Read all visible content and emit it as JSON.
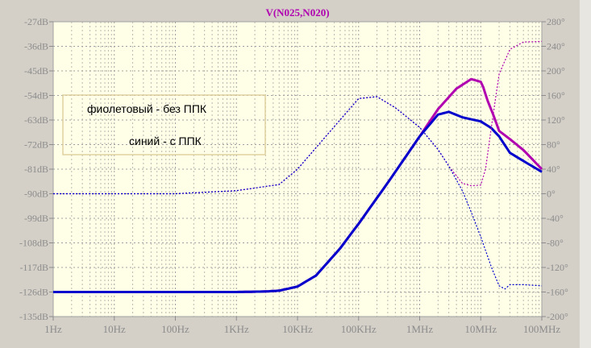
{
  "chart_data": {
    "type": "line",
    "title": "V(N025,N020)",
    "x_scale": "log",
    "x_ticks": [
      "1Hz",
      "10Hz",
      "100Hz",
      "1KHz",
      "10KHz",
      "100KHz",
      "1MHz",
      "10MHz",
      "100MHz"
    ],
    "x_tick_values": [
      1,
      10,
      100,
      1000,
      10000,
      100000,
      1000000,
      10000000,
      100000000
    ],
    "xlim": [
      1,
      100000000
    ],
    "y_ticks": [
      "-27dB",
      "-36dB",
      "-45dB",
      "-54dB",
      "-63dB",
      "-72dB",
      "-81dB",
      "-90dB",
      "-99dB",
      "-108dB",
      "-117dB",
      "-126dB",
      "-135dB"
    ],
    "y_tick_values": [
      -27,
      -36,
      -45,
      -54,
      -63,
      -72,
      -81,
      -90,
      -99,
      -108,
      -117,
      -126,
      -135
    ],
    "ylim": [
      -135,
      -27
    ],
    "y2_ticks": [
      "280°",
      "240°",
      "200°",
      "160°",
      "120°",
      "80°",
      "40°",
      "0°",
      "-40°",
      "-80°",
      "-120°",
      "-160°",
      "-200°"
    ],
    "y2_tick_values": [
      280,
      240,
      200,
      160,
      120,
      80,
      40,
      0,
      -40,
      -80,
      -120,
      -160,
      -200
    ],
    "y2lim": [
      -200,
      280
    ],
    "grid": true,
    "annotations": [
      "фиолетовый - без ППК",
      "синий - с ППК"
    ],
    "series": [
      {
        "color": "#b000b0",
        "axis": "left",
        "style": "solid",
        "x": [
          1,
          1000,
          3000,
          5000,
          10000,
          20000,
          50000,
          100000,
          300000,
          1000000,
          2000000,
          4000000,
          7000000,
          10000000,
          11000000,
          13000000,
          16000000,
          20000000,
          30000000,
          50000000,
          100000000
        ],
        "y": [
          -126,
          -126,
          -125.8,
          -125.5,
          -124,
          -120,
          -110,
          -101,
          -86,
          -69,
          -59,
          -51.5,
          -48,
          -49,
          -51,
          -56,
          -61,
          -67,
          -70,
          -74,
          -81
        ]
      },
      {
        "color": "#0000cc",
        "axis": "left",
        "style": "solid",
        "x": [
          1,
          1000,
          3000,
          5000,
          10000,
          20000,
          50000,
          100000,
          300000,
          1000000,
          2000000,
          3000000,
          5000000,
          10000000,
          15000000,
          20000000,
          30000000,
          50000000,
          100000000
        ],
        "y": [
          -126,
          -126,
          -125.8,
          -125.5,
          -124,
          -120,
          -110,
          -101,
          -86,
          -69,
          -61,
          -60,
          -62,
          -63.5,
          -66,
          -69,
          -75,
          -78,
          -82
        ]
      },
      {
        "color": "#b000b0",
        "axis": "right",
        "style": "dotted",
        "x": [
          1,
          100,
          1000,
          5000,
          10000,
          30000,
          100000,
          200000,
          400000,
          1000000,
          2000000,
          3000000,
          5000000,
          7000000,
          10000000,
          12000000,
          15000000,
          20000000,
          30000000,
          50000000,
          100000000
        ],
        "y": [
          0,
          0,
          5,
          15,
          40,
          95,
          155,
          158,
          140,
          108,
          72,
          45,
          17,
          13,
          14,
          40,
          110,
          195,
          235,
          247,
          248
        ]
      },
      {
        "color": "#0000cc",
        "axis": "right",
        "style": "dotted",
        "x": [
          1,
          100,
          1000,
          5000,
          10000,
          30000,
          100000,
          200000,
          400000,
          1000000,
          2000000,
          3000000,
          5000000,
          7000000,
          10000000,
          15000000,
          20000000,
          25000000,
          30000000,
          50000000,
          100000000
        ],
        "y": [
          0,
          0,
          5,
          15,
          40,
          95,
          155,
          158,
          140,
          108,
          72,
          45,
          5,
          -30,
          -70,
          -120,
          -150,
          -155,
          -148,
          -148,
          -150
        ]
      }
    ]
  }
}
